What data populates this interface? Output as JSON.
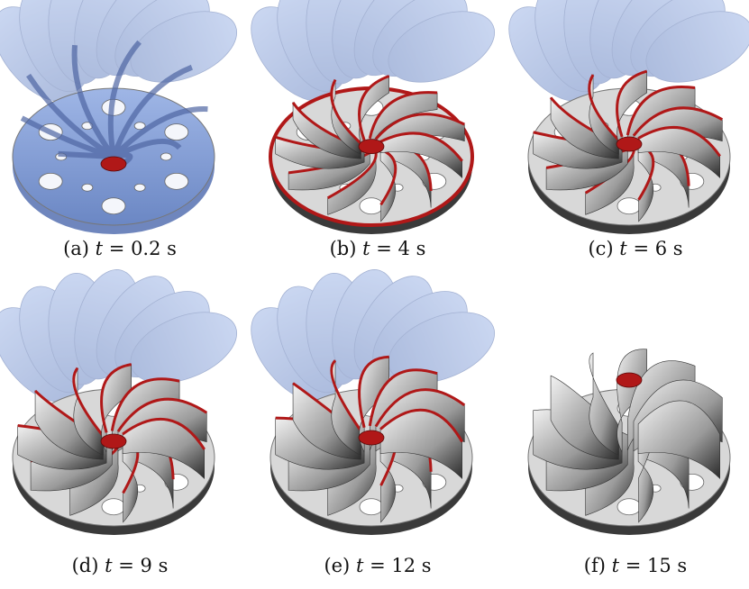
{
  "panels": [
    {
      "label": "(a)",
      "var": "t",
      "eq": "= 0.2 s",
      "stage": 0.0
    },
    {
      "label": "(b)",
      "var": "t",
      "eq": "= 4 s",
      "stage": 0.27
    },
    {
      "label": "(c)",
      "var": "t",
      "eq": "= 6 s",
      "stage": 0.4
    },
    {
      "label": "(d)",
      "var": "t",
      "eq": "= 9 s",
      "stage": 0.6
    },
    {
      "label": "(e)",
      "var": "t",
      "eq": "= 12 s",
      "stage": 0.8
    },
    {
      "label": "(f)",
      "var": "t",
      "eq": "= 15 s",
      "stage": 1.0
    }
  ],
  "colors": {
    "transparent_blue": "#7f9fd6",
    "deposited_gray": "#cfcfcf",
    "deposition_front_red": "#b01818",
    "background": "#ffffff"
  }
}
